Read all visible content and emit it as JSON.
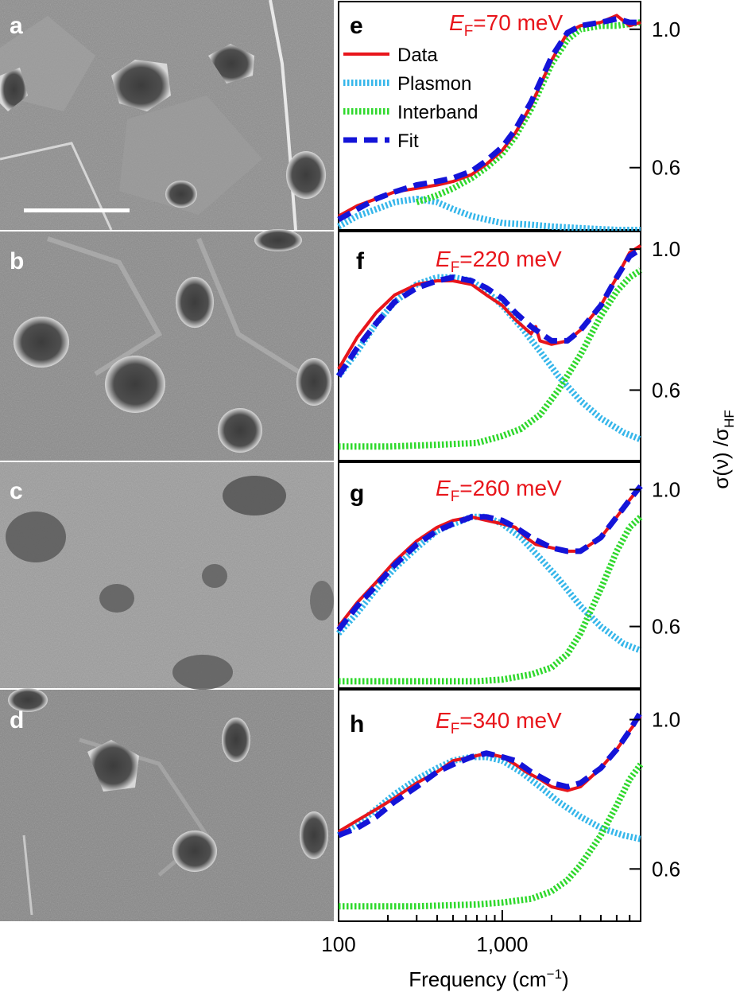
{
  "figure": {
    "sem_panels": [
      {
        "id": "a",
        "label": "a",
        "has_scale_bar": true
      },
      {
        "id": "b",
        "label": "b"
      },
      {
        "id": "c",
        "label": "c"
      },
      {
        "id": "d",
        "label": "d"
      }
    ],
    "colors": {
      "data": "#e8151b",
      "plasmon": "#35b6ea",
      "interband": "#2fd82c",
      "fit": "#1414d8",
      "ef_label": "#e8151b"
    }
  },
  "chart_data": [
    {
      "type": "line",
      "panel": "e",
      "label": "e",
      "ef_prefix": "E",
      "ef_sub": "F",
      "ef_value": "=70 meV",
      "x_scale": "log",
      "xlim": [
        100,
        7000
      ],
      "ylim": [
        0.42,
        1.08
      ],
      "yticks": [
        0.6,
        1.0
      ],
      "ytick_labels": [
        "0.6",
        "1.0"
      ],
      "legend": {
        "placement": "top-left",
        "entries": [
          "Data",
          "Plasmon",
          "Interband",
          "Fit"
        ]
      },
      "series": [
        {
          "name": "Data",
          "style": "solid",
          "color": "#e8151b",
          "x": [
            100,
            130,
            170,
            220,
            300,
            400,
            500,
            650,
            800,
            1000,
            1200,
            1500,
            2000,
            2500,
            3000,
            4000,
            5000,
            6000,
            7000
          ],
          "y": [
            0.46,
            0.49,
            0.51,
            0.53,
            0.54,
            0.55,
            0.56,
            0.58,
            0.61,
            0.65,
            0.7,
            0.78,
            0.91,
            0.99,
            1.01,
            1.02,
            1.04,
            1.01,
            1.02
          ]
        },
        {
          "name": "Plasmon",
          "style": "dotted",
          "color": "#35b6ea",
          "x": [
            100,
            130,
            170,
            220,
            300,
            400,
            500,
            650,
            800,
            1000,
            1500,
            2000,
            3000,
            5000,
            7000
          ],
          "y": [
            0.43,
            0.46,
            0.48,
            0.5,
            0.51,
            0.5,
            0.48,
            0.46,
            0.45,
            0.44,
            0.435,
            0.43,
            0.425,
            0.42,
            0.42
          ]
        },
        {
          "name": "Interband",
          "style": "dotted",
          "color": "#2fd82c",
          "x": [
            300,
            400,
            500,
            650,
            800,
            1000,
            1200,
            1500,
            2000,
            2500,
            3000,
            4000,
            5000,
            7000
          ],
          "y": [
            0.5,
            0.52,
            0.54,
            0.57,
            0.6,
            0.64,
            0.69,
            0.77,
            0.9,
            0.97,
            1.0,
            1.01,
            1.01,
            1.02
          ]
        },
        {
          "name": "Fit",
          "style": "dashed",
          "color": "#1414d8",
          "x": [
            100,
            130,
            170,
            220,
            300,
            400,
            500,
            650,
            800,
            1000,
            1200,
            1500,
            2000,
            2500,
            3000,
            4000,
            5000,
            6000,
            7000
          ],
          "y": [
            0.45,
            0.48,
            0.51,
            0.53,
            0.55,
            0.56,
            0.57,
            0.59,
            0.62,
            0.66,
            0.71,
            0.79,
            0.92,
            0.99,
            1.01,
            1.02,
            1.03,
            1.02,
            1.02
          ]
        }
      ]
    },
    {
      "type": "line",
      "panel": "f",
      "label": "f",
      "ef_prefix": "E",
      "ef_sub": "F",
      "ef_value": "=220 meV",
      "x_scale": "log",
      "xlim": [
        100,
        7000
      ],
      "ylim": [
        0.4,
        1.05
      ],
      "yticks": [
        0.6,
        1.0
      ],
      "ytick_labels": [
        "0.6",
        "1.0"
      ],
      "series": [
        {
          "name": "Data",
          "style": "solid",
          "color": "#e8151b",
          "x": [
            100,
            130,
            170,
            220,
            300,
            400,
            500,
            650,
            800,
            1000,
            1200,
            1500,
            1600,
            1700,
            2000,
            2500,
            3000,
            4000,
            5000,
            6000,
            7000
          ],
          "y": [
            0.66,
            0.75,
            0.82,
            0.87,
            0.9,
            0.91,
            0.91,
            0.9,
            0.87,
            0.84,
            0.8,
            0.76,
            0.78,
            0.74,
            0.73,
            0.74,
            0.77,
            0.84,
            0.92,
            0.99,
            1.01
          ]
        },
        {
          "name": "Plasmon",
          "style": "dotted",
          "color": "#35b6ea",
          "x": [
            100,
            130,
            170,
            220,
            300,
            400,
            500,
            650,
            800,
            1000,
            1300,
            1700,
            2200,
            3000,
            4000,
            5500,
            7000
          ],
          "y": [
            0.64,
            0.71,
            0.79,
            0.85,
            0.9,
            0.92,
            0.92,
            0.91,
            0.88,
            0.84,
            0.78,
            0.71,
            0.64,
            0.57,
            0.52,
            0.48,
            0.46
          ]
        },
        {
          "name": "Interband",
          "style": "dotted",
          "color": "#2fd82c",
          "x": [
            100,
            200,
            400,
            700,
            1000,
            1300,
            1700,
            2200,
            3000,
            4000,
            5000,
            6000,
            7000
          ],
          "y": [
            0.44,
            0.44,
            0.445,
            0.45,
            0.47,
            0.49,
            0.53,
            0.6,
            0.7,
            0.81,
            0.88,
            0.92,
            0.94
          ]
        },
        {
          "name": "Fit",
          "style": "dashed",
          "color": "#1414d8",
          "x": [
            100,
            130,
            170,
            220,
            300,
            400,
            500,
            650,
            800,
            1000,
            1200,
            1500,
            2000,
            2500,
            3000,
            4000,
            5000,
            6000,
            7000
          ],
          "y": [
            0.64,
            0.72,
            0.79,
            0.85,
            0.89,
            0.91,
            0.92,
            0.91,
            0.89,
            0.86,
            0.82,
            0.78,
            0.74,
            0.74,
            0.77,
            0.84,
            0.92,
            0.98,
            1.0
          ]
        }
      ]
    },
    {
      "type": "line",
      "panel": "g",
      "label": "g",
      "ef_prefix": "E",
      "ef_sub": "F",
      "ef_value": "=260 meV",
      "x_scale": "log",
      "xlim": [
        100,
        7000
      ],
      "ylim": [
        0.42,
        1.08
      ],
      "yticks": [
        0.6,
        1.0
      ],
      "ytick_labels": [
        "0.6",
        "1.0"
      ],
      "series": [
        {
          "name": "Data",
          "style": "solid",
          "color": "#e8151b",
          "x": [
            100,
            130,
            170,
            220,
            300,
            400,
            500,
            650,
            800,
            1000,
            1200,
            1400,
            1600,
            2000,
            2500,
            3000,
            4000,
            5000,
            6000,
            7000
          ],
          "y": [
            0.6,
            0.67,
            0.73,
            0.79,
            0.85,
            0.89,
            0.91,
            0.92,
            0.91,
            0.9,
            0.89,
            0.86,
            0.84,
            0.83,
            0.82,
            0.82,
            0.86,
            0.92,
            0.97,
            1.01
          ]
        },
        {
          "name": "Plasmon",
          "style": "dotted",
          "color": "#35b6ea",
          "x": [
            100,
            130,
            170,
            220,
            300,
            400,
            500,
            650,
            800,
            1000,
            1300,
            1700,
            2200,
            3000,
            4000,
            5500,
            7000
          ],
          "y": [
            0.58,
            0.64,
            0.71,
            0.77,
            0.83,
            0.88,
            0.9,
            0.92,
            0.92,
            0.9,
            0.86,
            0.8,
            0.74,
            0.66,
            0.6,
            0.55,
            0.53
          ]
        },
        {
          "name": "Interband",
          "style": "dotted",
          "color": "#2fd82c",
          "x": [
            100,
            300,
            700,
            1000,
            1500,
            2000,
            2500,
            3000,
            4000,
            5000,
            6000,
            7000
          ],
          "y": [
            0.44,
            0.44,
            0.44,
            0.445,
            0.46,
            0.48,
            0.52,
            0.58,
            0.71,
            0.82,
            0.89,
            0.92
          ]
        },
        {
          "name": "Fit",
          "style": "dashed",
          "color": "#1414d8",
          "x": [
            100,
            130,
            170,
            220,
            300,
            400,
            500,
            650,
            800,
            1000,
            1200,
            1500,
            2000,
            2500,
            3000,
            4000,
            5000,
            6000,
            7000
          ],
          "y": [
            0.59,
            0.66,
            0.72,
            0.78,
            0.84,
            0.88,
            0.9,
            0.92,
            0.92,
            0.91,
            0.89,
            0.86,
            0.83,
            0.82,
            0.82,
            0.86,
            0.92,
            0.97,
            1.01
          ]
        }
      ]
    },
    {
      "type": "line",
      "panel": "h",
      "label": "h",
      "ef_prefix": "E",
      "ef_sub": "F",
      "ef_value": "=340 meV",
      "x_scale": "log",
      "xlim": [
        100,
        7000
      ],
      "ylim": [
        0.46,
        1.08
      ],
      "yticks": [
        0.6,
        1.0
      ],
      "ytick_labels": [
        "0.6",
        "1.0"
      ],
      "xticks": [
        100,
        1000
      ],
      "xtick_labels": [
        "100",
        "1,000"
      ],
      "xlabel_prefix": "Frequency (cm",
      "xlabel_sup": "−1",
      "xlabel_suffix": ")",
      "series": [
        {
          "name": "Data",
          "style": "solid",
          "color": "#e8151b",
          "x": [
            100,
            130,
            170,
            220,
            300,
            400,
            500,
            650,
            800,
            1000,
            1200,
            1400,
            1700,
            2000,
            2500,
            3000,
            4000,
            5000,
            6000,
            7000
          ],
          "y": [
            0.7,
            0.73,
            0.76,
            0.79,
            0.83,
            0.86,
            0.89,
            0.9,
            0.91,
            0.9,
            0.88,
            0.86,
            0.84,
            0.82,
            0.81,
            0.82,
            0.87,
            0.92,
            0.97,
            1.01
          ]
        },
        {
          "name": "Plasmon",
          "style": "dotted",
          "color": "#35b6ea",
          "x": [
            100,
            130,
            170,
            220,
            300,
            400,
            500,
            650,
            800,
            1000,
            1300,
            1700,
            2200,
            3000,
            4000,
            5500,
            7000
          ],
          "y": [
            0.69,
            0.72,
            0.76,
            0.8,
            0.84,
            0.87,
            0.89,
            0.9,
            0.9,
            0.89,
            0.86,
            0.82,
            0.78,
            0.74,
            0.71,
            0.69,
            0.68
          ]
        },
        {
          "name": "Interband",
          "style": "dotted",
          "color": "#2fd82c",
          "x": [
            100,
            300,
            700,
            1000,
            1500,
            2000,
            2500,
            3000,
            4000,
            5000,
            6000,
            7000
          ],
          "y": [
            0.5,
            0.5,
            0.505,
            0.51,
            0.52,
            0.54,
            0.57,
            0.61,
            0.69,
            0.77,
            0.84,
            0.88
          ]
        },
        {
          "name": "Fit",
          "style": "dashed",
          "color": "#1414d8",
          "x": [
            100,
            130,
            170,
            220,
            300,
            400,
            500,
            650,
            800,
            1000,
            1200,
            1500,
            2000,
            2500,
            3000,
            4000,
            5000,
            6000,
            7000
          ],
          "y": [
            0.69,
            0.71,
            0.74,
            0.78,
            0.82,
            0.86,
            0.88,
            0.9,
            0.91,
            0.9,
            0.89,
            0.86,
            0.83,
            0.82,
            0.83,
            0.87,
            0.92,
            0.97,
            1.02
          ]
        }
      ]
    }
  ],
  "y_axis_title": {
    "prefix": "σ(ν) /σ",
    "sub": "HF"
  }
}
